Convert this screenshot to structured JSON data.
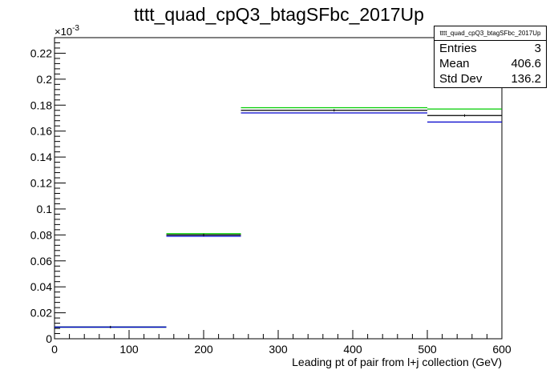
{
  "chart_data": {
    "type": "histogram",
    "title": "tttt_quad_cpQ3_btagSFbc_2017Up",
    "xlabel": "Leading pt of pair from l+j collection (GeV)",
    "ylabel": "",
    "y_multiplier_label": "×10",
    "y_multiplier_exponent": "-3",
    "xlim": [
      0,
      600
    ],
    "ylim": [
      0,
      0.232
    ],
    "x_ticks": [
      0,
      100,
      200,
      300,
      400,
      500,
      600
    ],
    "x_tick_labels": [
      "0",
      "100",
      "200",
      "300",
      "400",
      "500",
      "600"
    ],
    "y_ticks": [
      0,
      0.02,
      0.04,
      0.06,
      0.08,
      0.1,
      0.12,
      0.14,
      0.16,
      0.18,
      0.2,
      0.22
    ],
    "y_tick_labels": [
      "0",
      "0.02",
      "0.04",
      "0.06",
      "0.08",
      "0.1",
      "0.12",
      "0.14",
      "0.16",
      "0.18",
      "0.2",
      "0.22"
    ],
    "bin_edges": [
      0,
      150,
      250,
      500,
      600
    ],
    "series": [
      {
        "color": "#000000",
        "values": [
          0.009,
          0.08,
          0.176,
          0.172
        ]
      },
      {
        "color": "#00cc00",
        "values": [
          0.009,
          0.081,
          0.178,
          0.177
        ]
      },
      {
        "color": "#0000cc",
        "values": [
          0.009,
          0.079,
          0.174,
          0.167
        ]
      }
    ],
    "stats": {
      "name": "tttt_quad_cpQ3_btagSFbc_2017Up",
      "rows": [
        {
          "label": "Entries",
          "value": "3"
        },
        {
          "label": "Mean",
          "value": "406.6"
        },
        {
          "label": "Std Dev",
          "value": "136.2"
        }
      ]
    },
    "grid": false,
    "legend": "none"
  }
}
